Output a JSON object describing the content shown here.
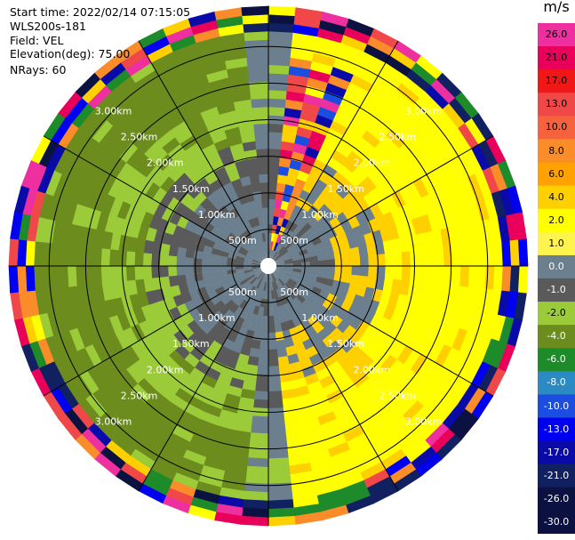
{
  "info": {
    "start_time": "Start time: 2022/02/14 07:15:05",
    "instrument": "WLS200s-181",
    "field": "Field: VEL",
    "elevation": "Elevation(deg): 75.00",
    "nrays": "NRays: 60"
  },
  "chart_data": {
    "type": "heatmap",
    "projection": "polar-ppi",
    "range_rings": [
      {
        "range_m": 500,
        "label": "500m"
      },
      {
        "range_m": 1000,
        "label": "1.00km"
      },
      {
        "range_m": 1500,
        "label": "1.50km"
      },
      {
        "range_m": 2000,
        "label": "2.00km"
      },
      {
        "range_m": 2500,
        "label": "2.50km"
      },
      {
        "range_m": 3000,
        "label": "3.00km"
      }
    ],
    "max_range_m": 3550,
    "min_range_m": 110,
    "radial_spokes_deg": [
      0,
      30,
      60,
      90,
      120,
      150,
      180,
      210,
      240,
      270,
      300,
      330
    ],
    "colorbar": {
      "unit": "m/s",
      "bins": [
        {
          "v": "26.0",
          "color": "#ee2f9f"
        },
        {
          "v": "21.0",
          "color": "#e8005a"
        },
        {
          "v": "17.0",
          "color": "#f11717"
        },
        {
          "v": "13.0",
          "color": "#f04848"
        },
        {
          "v": "10.0",
          "color": "#f5623d"
        },
        {
          "v": "8.0",
          "color": "#fa8c2a"
        },
        {
          "v": "6.0",
          "color": "#ffa200"
        },
        {
          "v": "4.0",
          "color": "#ffd000"
        },
        {
          "v": "2.0",
          "color": "#ffff00"
        },
        {
          "v": "1.0",
          "color": "#fff44d"
        },
        {
          "v": "0.0",
          "color": "#6b7f8e"
        },
        {
          "v": "-1.0",
          "color": "#5a5a5a"
        },
        {
          "v": "-2.0",
          "color": "#9ccb3a"
        },
        {
          "v": "-4.0",
          "color": "#6c8c1e"
        },
        {
          "v": "-6.0",
          "color": "#1e8b2a"
        },
        {
          "v": "-8.0",
          "color": "#2b8ac2"
        },
        {
          "v": "-10.0",
          "color": "#1a4de0"
        },
        {
          "v": "-13.0",
          "color": "#0000f0"
        },
        {
          "v": "-17.0",
          "color": "#0a0aa8"
        },
        {
          "v": "-21.0",
          "color": "#102060"
        },
        {
          "v": "-26.0",
          "color": "#0b1140"
        },
        {
          "v": "-30.0",
          "color": "#0b1140"
        }
      ]
    }
  }
}
